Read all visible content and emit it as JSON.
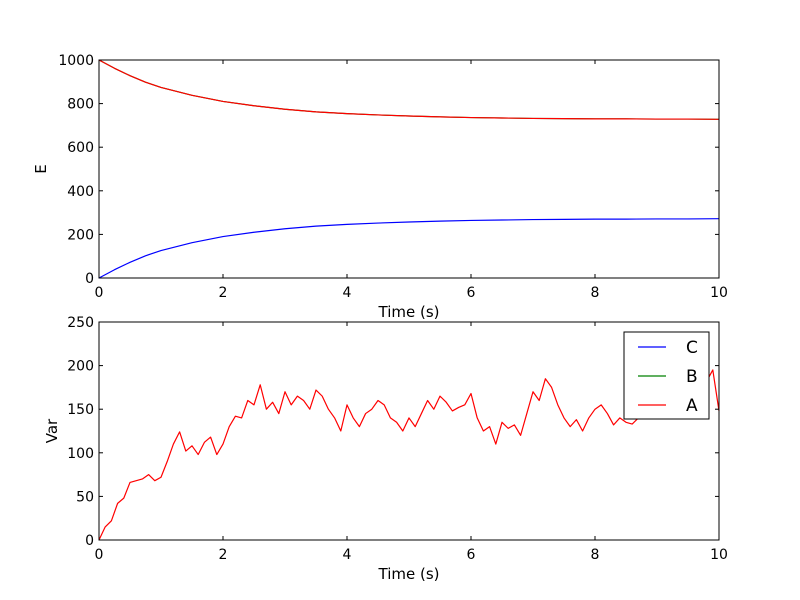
{
  "chart_data": [
    {
      "type": "line",
      "xlabel": "Time (s)",
      "ylabel": "E",
      "xlim": [
        0,
        10
      ],
      "ylim": [
        0,
        1000
      ],
      "xticks": [
        0,
        2,
        4,
        6,
        8,
        10
      ],
      "yticks": [
        0,
        200,
        400,
        600,
        800,
        1000
      ],
      "grid": false,
      "series": [
        {
          "name": "C",
          "color": "#0000ff",
          "x": [
            0,
            0.25,
            0.5,
            0.75,
            1,
            1.5,
            2,
            2.5,
            3,
            3.5,
            4,
            4.5,
            5,
            5.5,
            6,
            6.5,
            7,
            7.5,
            8,
            8.5,
            9,
            9.5,
            10
          ],
          "y": [
            0,
            38,
            72,
            102,
            126,
            162,
            190,
            210,
            226,
            238,
            246,
            252,
            257,
            261,
            264,
            266,
            268,
            269,
            270,
            270,
            271,
            271,
            272
          ]
        },
        {
          "name": "B",
          "color": "#008000",
          "x": [
            0,
            0.25,
            0.5,
            0.75,
            1,
            1.5,
            2,
            2.5,
            3,
            3.5,
            4,
            4.5,
            5,
            5.5,
            6,
            6.5,
            7,
            7.5,
            8,
            8.5,
            9,
            9.5,
            10
          ],
          "y": [
            1000,
            962,
            928,
            898,
            874,
            838,
            810,
            790,
            774,
            762,
            754,
            748,
            743,
            739,
            736,
            734,
            732,
            731,
            730,
            730,
            729,
            729,
            728
          ]
        },
        {
          "name": "A",
          "color": "#ff0000",
          "x": [
            0,
            0.25,
            0.5,
            0.75,
            1,
            1.5,
            2,
            2.5,
            3,
            3.5,
            4,
            4.5,
            5,
            5.5,
            6,
            6.5,
            7,
            7.5,
            8,
            8.5,
            9,
            9.5,
            10
          ],
          "y": [
            1000,
            962,
            928,
            898,
            874,
            838,
            810,
            790,
            774,
            762,
            754,
            748,
            743,
            739,
            736,
            734,
            732,
            731,
            730,
            730,
            729,
            729,
            728
          ]
        }
      ]
    },
    {
      "type": "line",
      "xlabel": "Time (s)",
      "ylabel": "Var",
      "xlim": [
        0,
        10
      ],
      "ylim": [
        0,
        250
      ],
      "xticks": [
        0,
        2,
        4,
        6,
        8,
        10
      ],
      "yticks": [
        0,
        50,
        100,
        150,
        200,
        250
      ],
      "grid": false,
      "legend": {
        "placement": "top-right",
        "entries": [
          "C",
          "B",
          "A"
        ]
      },
      "series": [
        {
          "name": "C",
          "color": "#0000ff",
          "x": [],
          "y": []
        },
        {
          "name": "B",
          "color": "#008000",
          "x": [],
          "y": []
        },
        {
          "name": "A",
          "color": "#ff0000",
          "x": [
            0,
            0.1,
            0.2,
            0.3,
            0.4,
            0.5,
            0.6,
            0.7,
            0.8,
            0.9,
            1.0,
            1.1,
            1.2,
            1.3,
            1.4,
            1.5,
            1.6,
            1.7,
            1.8,
            1.9,
            2.0,
            2.1,
            2.2,
            2.3,
            2.4,
            2.5,
            2.6,
            2.7,
            2.8,
            2.9,
            3.0,
            3.1,
            3.2,
            3.3,
            3.4,
            3.5,
            3.6,
            3.7,
            3.8,
            3.9,
            4.0,
            4.1,
            4.2,
            4.3,
            4.4,
            4.5,
            4.6,
            4.7,
            4.8,
            4.9,
            5.0,
            5.1,
            5.2,
            5.3,
            5.4,
            5.5,
            5.6,
            5.7,
            5.8,
            5.9,
            6.0,
            6.1,
            6.2,
            6.3,
            6.4,
            6.5,
            6.6,
            6.7,
            6.8,
            6.9,
            7.0,
            7.1,
            7.2,
            7.3,
            7.4,
            7.5,
            7.6,
            7.7,
            7.8,
            7.9,
            8.0,
            8.1,
            8.2,
            8.3,
            8.4,
            8.5,
            8.6,
            8.7,
            8.8,
            8.9,
            9.0,
            9.1,
            9.2,
            9.3,
            9.4,
            9.5,
            9.6,
            9.7,
            9.8,
            9.9,
            10.0
          ],
          "y": [
            0,
            15,
            22,
            42,
            48,
            66,
            68,
            70,
            75,
            68,
            72,
            90,
            110,
            124,
            102,
            108,
            98,
            112,
            118,
            98,
            110,
            130,
            142,
            140,
            160,
            155,
            178,
            150,
            158,
            145,
            170,
            155,
            165,
            160,
            150,
            172,
            165,
            150,
            140,
            125,
            155,
            140,
            130,
            145,
            150,
            160,
            155,
            140,
            135,
            125,
            140,
            130,
            145,
            160,
            150,
            165,
            158,
            148,
            152,
            155,
            168,
            140,
            125,
            130,
            110,
            135,
            128,
            132,
            120,
            145,
            170,
            160,
            185,
            175,
            155,
            140,
            130,
            138,
            125,
            140,
            150,
            155,
            145,
            132,
            140,
            135,
            133,
            140,
            155,
            165,
            160,
            175,
            185,
            170,
            155,
            160,
            178,
            192,
            182,
            195,
            148
          ]
        }
      ]
    }
  ]
}
